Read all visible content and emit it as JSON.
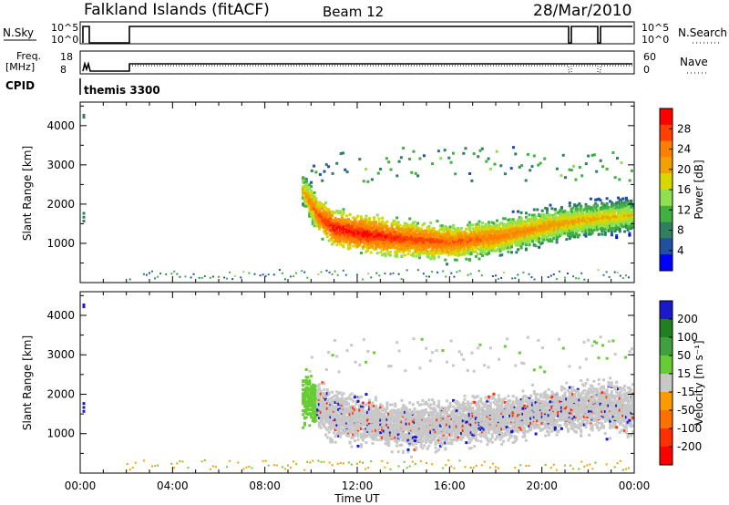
{
  "header": {
    "station": "Falkland Islands (fitACF)",
    "beam": "Beam 12",
    "date": "28/Mar/2010"
  },
  "status_panels": {
    "nsky": {
      "left_label": "N.Sky",
      "left_ticks": [
        "10^5",
        "10^0"
      ],
      "right_label": "N.Search",
      "right_ticks": [
        "10^5",
        "10^0"
      ]
    },
    "freq": {
      "left_label": "Freq.",
      "left_unit": "[MHz]",
      "left_ticks": [
        "18",
        "8"
      ],
      "right_label": "Nave",
      "right_ticks": [
        "60",
        "0"
      ]
    },
    "cpid": {
      "label": "CPID",
      "value": "themis 3300"
    }
  },
  "power_colorbar": {
    "label": "Power [dB]",
    "ticks": [
      "28",
      "24",
      "20",
      "16",
      "12",
      "8",
      "4"
    ],
    "colors": [
      "#ff0000",
      "#ff4000",
      "#ff8000",
      "#f0a000",
      "#d8d800",
      "#90e050",
      "#40b040",
      "#308060",
      "#2050a0",
      "#0000ff"
    ]
  },
  "velocity_colorbar": {
    "label": "Velocity [m s⁻¹]",
    "ticks": [
      "200",
      "100",
      "50",
      "15",
      "-15",
      "-50",
      "-100",
      "-200"
    ],
    "colors": [
      "#1a1acc",
      "#208020",
      "#40a040",
      "#66cc33",
      "#c8c8c8",
      "#ff9900",
      "#ff7000",
      "#ff3000",
      "#ff0000"
    ]
  },
  "chart_data": [
    {
      "type": "heatmap",
      "title": "Power",
      "ylabel": "Slant Range [km]",
      "xlabel": "",
      "xlim": [
        "00:00",
        "24:00"
      ],
      "x_tick_labels": [
        "00:00",
        "04:00",
        "08:00",
        "12:00",
        "16:00",
        "20:00",
        "00:00"
      ],
      "ylim": [
        0,
        4600
      ],
      "y_tick_labels": [
        "1000",
        "2000",
        "3000",
        "4000"
      ],
      "colorbar_range_dB": [
        0,
        30
      ],
      "main_echo_band": [
        {
          "t": 9.6,
          "range_km": 2400,
          "power_dB": 20
        },
        {
          "t": 10.2,
          "range_km": 1800,
          "power_dB": 26
        },
        {
          "t": 11.0,
          "range_km": 1400,
          "power_dB": 30
        },
        {
          "t": 12.5,
          "range_km": 1250,
          "power_dB": 30
        },
        {
          "t": 14.0,
          "range_km": 1150,
          "power_dB": 28
        },
        {
          "t": 16.0,
          "range_km": 1050,
          "power_dB": 26
        },
        {
          "t": 18.0,
          "range_km": 1200,
          "power_dB": 24
        },
        {
          "t": 20.0,
          "range_km": 1450,
          "power_dB": 22
        },
        {
          "t": 22.0,
          "range_km": 1650,
          "power_dB": 20
        },
        {
          "t": 24.0,
          "range_km": 1750,
          "power_dB": 18
        }
      ]
    },
    {
      "type": "heatmap",
      "title": "Velocity",
      "ylabel": "Slant Range [km]",
      "xlabel": "Time UT",
      "xlim": [
        "00:00",
        "24:00"
      ],
      "x_tick_labels": [
        "00:00",
        "04:00",
        "08:00",
        "12:00",
        "16:00",
        "20:00",
        "00:00"
      ],
      "ylim": [
        0,
        4600
      ],
      "y_tick_labels": [
        "1000",
        "2000",
        "3000",
        "4000"
      ],
      "colorbar_range_ms": [
        -200,
        200
      ],
      "main_echo_band": [
        {
          "t": 9.6,
          "range_km": 2000,
          "velocity_ms": 40
        },
        {
          "t": 11.0,
          "range_km": 1500,
          "velocity_ms": 0
        },
        {
          "t": 14.0,
          "range_km": 1200,
          "velocity_ms": 0
        },
        {
          "t": 18.0,
          "range_km": 1400,
          "velocity_ms": 0
        },
        {
          "t": 22.0,
          "range_km": 1700,
          "velocity_ms": 0
        }
      ]
    }
  ]
}
